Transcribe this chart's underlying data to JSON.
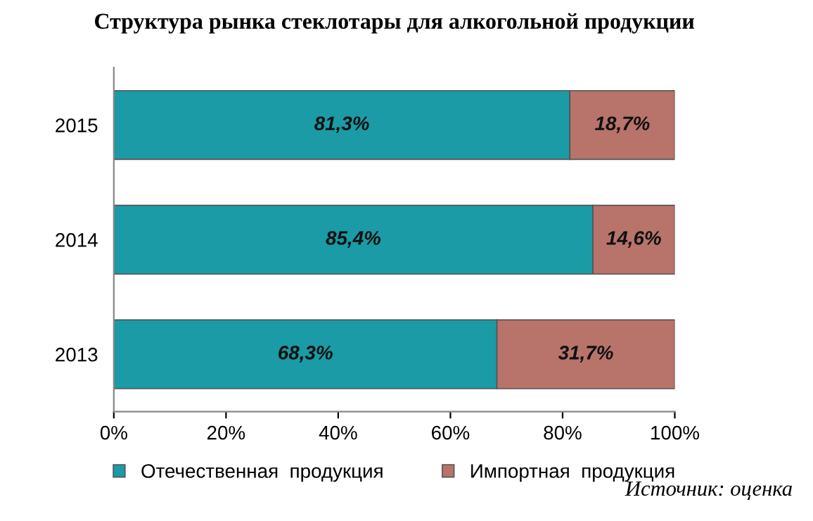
{
  "chart_data": {
    "type": "bar",
    "orientation": "horizontal",
    "stacked": true,
    "title": "Структура рынка стеклотары для алкогольной продукции",
    "categories": [
      "2015",
      "2014",
      "2013"
    ],
    "series": [
      {
        "name": "Отечественная  продукция",
        "color": "#1a9ba5",
        "values": [
          81.3,
          85.4,
          68.3
        ],
        "value_labels": [
          "81,3%",
          "85,4%",
          "68,3%"
        ]
      },
      {
        "name": "Импортная  продукция",
        "color": "#b8736b",
        "values": [
          18.7,
          14.6,
          31.7
        ],
        "value_labels": [
          "18,7%",
          "14,6%",
          "31,7%"
        ]
      }
    ],
    "xlim": [
      0,
      100
    ],
    "xticks": [
      {
        "value": 0,
        "label": "0%"
      },
      {
        "value": 20,
        "label": "20%"
      },
      {
        "value": 40,
        "label": "40%"
      },
      {
        "value": 60,
        "label": "60%"
      },
      {
        "value": 80,
        "label": "80%"
      },
      {
        "value": 100,
        "label": "100%"
      }
    ],
    "legend": "bottom",
    "grid": false,
    "annotations": [
      "Источник: оценка"
    ]
  }
}
